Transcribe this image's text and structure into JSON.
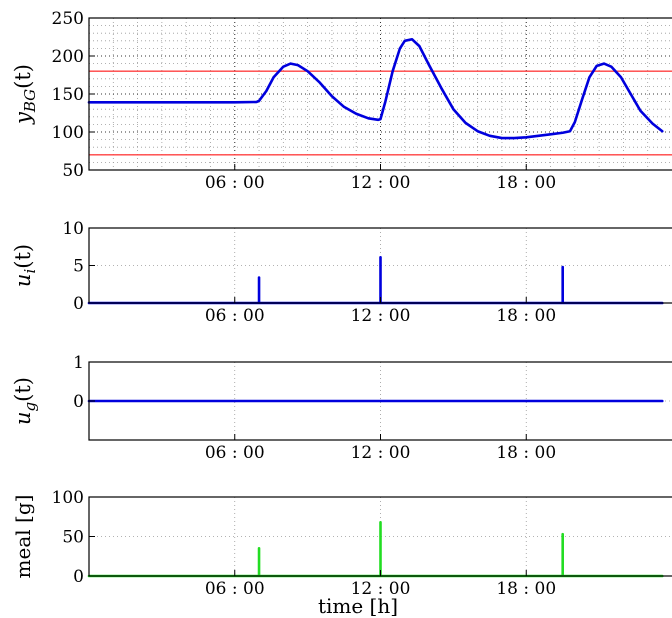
{
  "chart_data": [
    {
      "type": "line",
      "ylabel": "y_BG(t)",
      "ylabel_main": "y",
      "ylabel_sub": "BG",
      "ylabel_tail": "(t)",
      "x_unit": "hours",
      "xlim": [
        0,
        24
      ],
      "ylim": [
        50,
        250
      ],
      "yticks": [
        50,
        100,
        150,
        200,
        250
      ],
      "xticks": [
        6,
        12,
        18
      ],
      "xtick_labels": [
        "06 : 00",
        "12 : 00",
        "18 : 00"
      ],
      "grid": "dense-dotted",
      "reference_lines": [
        {
          "y": 180,
          "color": "#ff4040"
        },
        {
          "y": 70,
          "color": "#ff4040"
        }
      ],
      "series": [
        {
          "color": "#0000dd",
          "x": [
            0,
            1,
            2,
            3,
            4,
            5,
            6,
            6.9,
            7.0,
            7.3,
            7.6,
            8.0,
            8.3,
            8.6,
            9.0,
            9.5,
            10.0,
            10.5,
            11.0,
            11.5,
            11.9,
            12.0,
            12.2,
            12.5,
            12.8,
            13.0,
            13.3,
            13.6,
            14.0,
            14.5,
            15.0,
            15.5,
            16.0,
            16.5,
            17.0,
            17.5,
            18.0,
            18.5,
            19.0,
            19.5,
            19.8,
            20.0,
            20.3,
            20.6,
            20.9,
            21.2,
            21.5,
            21.9,
            22.3,
            22.7,
            23.2,
            23.6
          ],
          "y": [
            139,
            139,
            139,
            139,
            139,
            139,
            139,
            139.5,
            141,
            154,
            172,
            186,
            190,
            188,
            180,
            165,
            147,
            133,
            124,
            118,
            116,
            117,
            140,
            180,
            210,
            220,
            222,
            213,
            188,
            158,
            130,
            112,
            101,
            95,
            92,
            92,
            93,
            95,
            97,
            99,
            101,
            113,
            143,
            172,
            187,
            190,
            186,
            172,
            150,
            128,
            111,
            101
          ]
        }
      ]
    },
    {
      "type": "line",
      "ylabel": "u_i(t)",
      "ylabel_main": "u",
      "ylabel_sub": "i",
      "ylabel_tail": "(t)",
      "x_unit": "hours",
      "xlim": [
        0,
        24
      ],
      "ylim": [
        0,
        10
      ],
      "yticks": [
        0,
        5,
        10
      ],
      "xticks": [
        6,
        12,
        18
      ],
      "xtick_labels": [
        "06 : 00",
        "12 : 00",
        "18 : 00"
      ],
      "grid": "dotted",
      "series": [
        {
          "color": "#0000dd",
          "x": [
            0,
            7.0,
            7.0,
            7.0,
            12.0,
            12.0,
            12.0,
            19.5,
            19.5,
            19.5,
            23.6
          ],
          "y": [
            0,
            0,
            3.4,
            0,
            0,
            6.1,
            0,
            0,
            4.8,
            0,
            0
          ]
        }
      ]
    },
    {
      "type": "line",
      "ylabel": "u_g(t)",
      "ylabel_main": "u",
      "ylabel_sub": "g",
      "ylabel_tail": "(t)",
      "x_unit": "hours",
      "xlim": [
        0,
        24
      ],
      "ylim": [
        -1,
        1
      ],
      "yticks": [
        0,
        1
      ],
      "xticks": [
        6,
        12,
        18
      ],
      "xtick_labels": [
        "06 : 00",
        "12 : 00",
        "18 : 00"
      ],
      "grid": "dotted",
      "series": [
        {
          "color": "#0000dd",
          "x": [
            0,
            23.6
          ],
          "y": [
            0,
            0
          ]
        }
      ]
    },
    {
      "type": "line",
      "ylabel": "meal [g]",
      "xlabel": "time [h]",
      "x_unit": "hours",
      "xlim": [
        0,
        24
      ],
      "ylim": [
        0,
        100
      ],
      "yticks": [
        0,
        50,
        100
      ],
      "xticks": [
        6,
        12,
        18
      ],
      "xtick_labels": [
        "06 : 00",
        "12 : 00",
        "18 : 00"
      ],
      "grid": "dotted",
      "series": [
        {
          "color": "#22dd22",
          "x": [
            0,
            7.0,
            7.0,
            7.0,
            12.0,
            12.0,
            12.0,
            19.5,
            19.5,
            19.5,
            23.6
          ],
          "y": [
            0,
            0,
            35,
            0,
            0,
            68,
            0,
            0,
            53,
            0,
            0
          ]
        }
      ]
    }
  ]
}
